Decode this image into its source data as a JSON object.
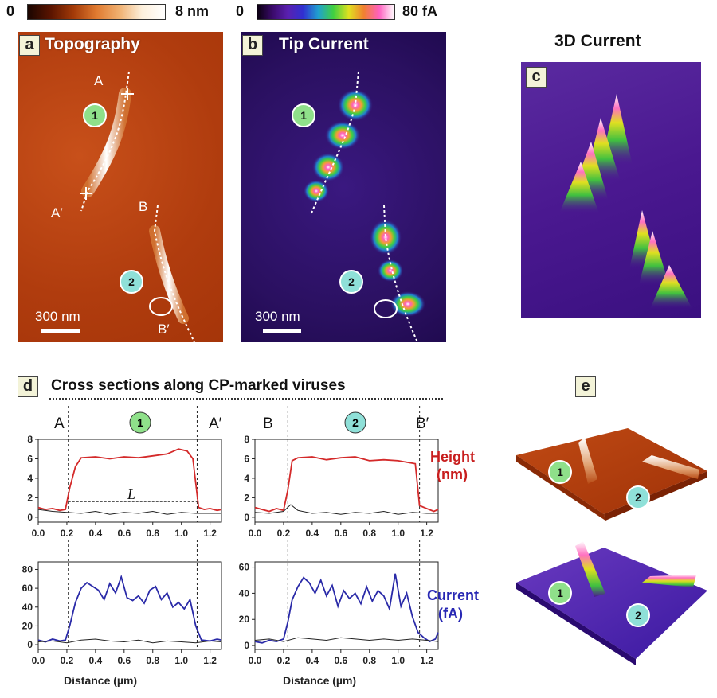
{
  "colorbars": {
    "height": {
      "min": "0",
      "max": "8 nm"
    },
    "current": {
      "min": "0",
      "max": "80 fA"
    }
  },
  "panels": {
    "a": {
      "letter": "a",
      "title": "Topography",
      "scale": "300 nm",
      "markers": [
        "A",
        "A′",
        "B",
        "B′"
      ],
      "badges": [
        "1",
        "2"
      ]
    },
    "b": {
      "letter": "b",
      "title": "Tip Current",
      "scale": "300 nm",
      "badges": [
        "1",
        "2"
      ]
    },
    "c": {
      "letter": "c",
      "title": "3D Current"
    },
    "d": {
      "letter": "d",
      "title": "Cross sections along CP-marked viruses"
    },
    "e": {
      "letter": "e",
      "badges": [
        "1",
        "2",
        "1",
        "2"
      ]
    }
  },
  "labels": {
    "height": [
      "Height",
      "(nm)"
    ],
    "current": [
      "Current",
      "(fA)"
    ],
    "length": "L",
    "xlabel": "Distance (µm)",
    "section1": {
      "start": "A",
      "end": "A′",
      "badge": "1"
    },
    "section2": {
      "start": "B",
      "end": "B′",
      "badge": "2"
    }
  },
  "colors": {
    "height_line": "#d42a2a",
    "current_line": "#2a2aa8",
    "baseline": "#222222",
    "height_label": "#c81e1e",
    "current_label": "#2828b4"
  },
  "chart_data": [
    {
      "type": "line",
      "name": "height-1",
      "xlabel": "",
      "ylabel": "",
      "xlim": [
        0,
        1.28
      ],
      "ylim": [
        -0.5,
        8
      ],
      "xticks": [
        "0.0",
        "0.2",
        "0.4",
        "0.6",
        "0.8",
        "1.0",
        "1.2"
      ],
      "yticks": [
        "0",
        "2",
        "4",
        "6",
        "8"
      ],
      "series": [
        {
          "x": [
            0,
            0.05,
            0.1,
            0.15,
            0.19,
            0.22,
            0.26,
            0.3,
            0.4,
            0.5,
            0.6,
            0.7,
            0.8,
            0.9,
            0.98,
            1.04,
            1.08,
            1.12,
            1.16,
            1.2,
            1.25,
            1.28
          ],
          "y": [
            1.0,
            0.8,
            0.9,
            0.7,
            0.8,
            3.0,
            5.2,
            6.1,
            6.2,
            6.0,
            6.2,
            6.1,
            6.3,
            6.5,
            7.0,
            6.8,
            6.0,
            1.0,
            0.8,
            0.9,
            0.7,
            0.8
          ]
        },
        {
          "x": [
            0,
            0.1,
            0.2,
            0.3,
            0.4,
            0.5,
            0.6,
            0.7,
            0.8,
            0.9,
            1.0,
            1.1,
            1.2,
            1.28
          ],
          "y": [
            0.8,
            0.6,
            0.5,
            0.4,
            0.6,
            0.3,
            0.5,
            0.4,
            0.6,
            0.3,
            0.5,
            0.4,
            0.4,
            0.4
          ]
        }
      ],
      "vlines": [
        0.21,
        1.11
      ],
      "hline": {
        "y": 1.6,
        "from": 0.21,
        "to": 1.11
      }
    },
    {
      "type": "line",
      "name": "height-2",
      "xlabel": "",
      "ylabel": "",
      "xlim": [
        0,
        1.28
      ],
      "ylim": [
        -0.5,
        8
      ],
      "xticks": [
        "0.0",
        "0.2",
        "0.4",
        "0.6",
        "0.8",
        "1.0",
        "1.2"
      ],
      "yticks": [
        "0",
        "2",
        "4",
        "6",
        "8"
      ],
      "series": [
        {
          "x": [
            0,
            0.05,
            0.1,
            0.15,
            0.2,
            0.23,
            0.26,
            0.3,
            0.4,
            0.5,
            0.6,
            0.7,
            0.8,
            0.9,
            1.0,
            1.08,
            1.12,
            1.15,
            1.2,
            1.25,
            1.28
          ],
          "y": [
            1.0,
            0.8,
            0.6,
            0.9,
            0.7,
            2.8,
            5.8,
            6.1,
            6.2,
            5.9,
            6.1,
            6.2,
            5.8,
            5.9,
            5.8,
            5.6,
            5.5,
            1.2,
            0.9,
            0.6,
            0.8
          ]
        },
        {
          "x": [
            0,
            0.1,
            0.2,
            0.25,
            0.3,
            0.4,
            0.5,
            0.6,
            0.7,
            0.8,
            0.9,
            1.0,
            1.1,
            1.2,
            1.28
          ],
          "y": [
            0.5,
            0.4,
            0.6,
            1.3,
            0.7,
            0.4,
            0.5,
            0.3,
            0.5,
            0.4,
            0.6,
            0.3,
            0.5,
            0.4,
            0.4
          ]
        }
      ],
      "vlines": [
        0.23,
        1.15
      ]
    },
    {
      "type": "line",
      "name": "current-1",
      "xlabel": "Distance (µm)",
      "ylabel": "",
      "xlim": [
        0,
        1.28
      ],
      "ylim": [
        -5,
        88
      ],
      "xticks": [
        "0.0",
        "0.2",
        "0.4",
        "0.6",
        "0.8",
        "1.0",
        "1.2"
      ],
      "yticks": [
        "0",
        "20",
        "40",
        "60",
        "80"
      ],
      "series": [
        {
          "x": [
            0,
            0.05,
            0.1,
            0.15,
            0.19,
            0.22,
            0.26,
            0.3,
            0.34,
            0.38,
            0.42,
            0.46,
            0.5,
            0.54,
            0.58,
            0.62,
            0.66,
            0.7,
            0.74,
            0.78,
            0.82,
            0.86,
            0.9,
            0.94,
            0.98,
            1.02,
            1.06,
            1.1,
            1.14,
            1.2,
            1.25,
            1.28
          ],
          "y": [
            5,
            3,
            6,
            4,
            5,
            20,
            45,
            60,
            66,
            62,
            58,
            48,
            65,
            55,
            72,
            50,
            47,
            52,
            44,
            58,
            62,
            48,
            55,
            40,
            45,
            38,
            48,
            20,
            5,
            4,
            6,
            5
          ]
        },
        {
          "x": [
            0,
            0.1,
            0.2,
            0.3,
            0.4,
            0.5,
            0.6,
            0.7,
            0.8,
            0.9,
            1.0,
            1.1,
            1.2,
            1.28
          ],
          "y": [
            3,
            4,
            2,
            5,
            6,
            4,
            3,
            5,
            2,
            4,
            3,
            2,
            4,
            3
          ]
        }
      ],
      "vlines": [
        0.21,
        1.11
      ]
    },
    {
      "type": "line",
      "name": "current-2",
      "xlabel": "Distance (µm)",
      "ylabel": "",
      "xlim": [
        0,
        1.28
      ],
      "ylim": [
        -3,
        64
      ],
      "xticks": [
        "0.0",
        "0.2",
        "0.4",
        "0.6",
        "0.8",
        "1.0",
        "1.2"
      ],
      "yticks": [
        "0",
        "20",
        "40",
        "60"
      ],
      "series": [
        {
          "x": [
            0,
            0.05,
            0.1,
            0.15,
            0.2,
            0.23,
            0.26,
            0.3,
            0.34,
            0.38,
            0.42,
            0.46,
            0.5,
            0.54,
            0.58,
            0.62,
            0.66,
            0.7,
            0.74,
            0.78,
            0.82,
            0.86,
            0.9,
            0.94,
            0.98,
            1.02,
            1.06,
            1.1,
            1.14,
            1.18,
            1.22,
            1.26,
            1.28
          ],
          "y": [
            3,
            2,
            4,
            3,
            5,
            18,
            35,
            45,
            52,
            48,
            40,
            50,
            38,
            46,
            30,
            42,
            36,
            40,
            32,
            45,
            34,
            42,
            38,
            28,
            55,
            30,
            40,
            22,
            10,
            6,
            3,
            5,
            10
          ]
        },
        {
          "x": [
            0,
            0.1,
            0.2,
            0.3,
            0.4,
            0.5,
            0.6,
            0.7,
            0.8,
            0.9,
            1.0,
            1.1,
            1.2,
            1.28
          ],
          "y": [
            4,
            5,
            3,
            6,
            5,
            4,
            6,
            5,
            4,
            5,
            4,
            5,
            4,
            3
          ]
        }
      ],
      "vlines": [
        0.23,
        1.15
      ]
    }
  ]
}
